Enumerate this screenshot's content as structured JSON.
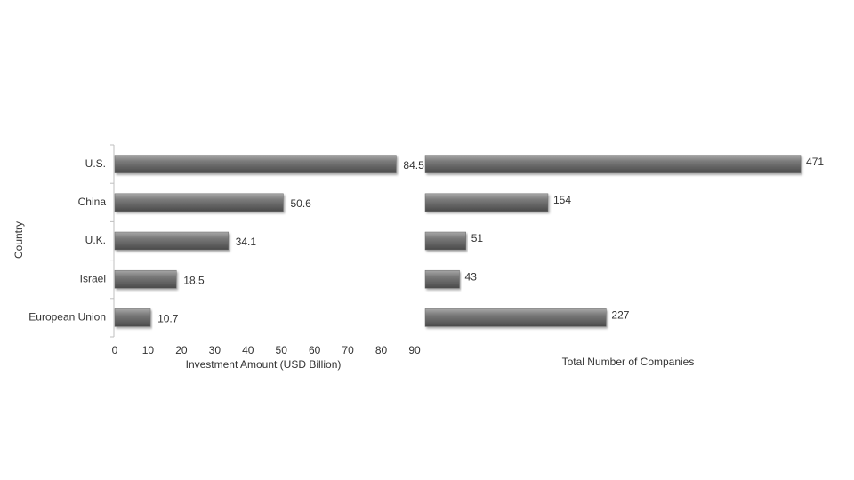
{
  "chart_data": [
    {
      "type": "bar",
      "orientation": "horizontal",
      "y_label": "Country",
      "x_label": "Investment Amount (USD Billion)",
      "categories": [
        "U.S.",
        "China",
        "U.K.",
        "Israel",
        "European Union"
      ],
      "values": [
        84.5,
        50.6,
        34.1,
        18.5,
        10.7
      ],
      "color": "#6b6b6b",
      "xlim": [
        0,
        90
      ],
      "xticks": [
        0,
        10,
        20,
        30,
        40,
        50,
        60,
        70,
        80,
        90
      ]
    },
    {
      "type": "bar",
      "orientation": "horizontal",
      "x_label": "Total Number of Companies",
      "values": [
        471,
        154,
        51,
        43,
        227
      ],
      "color": "#6b6b6b",
      "xlim": [
        0,
        500
      ]
    }
  ]
}
